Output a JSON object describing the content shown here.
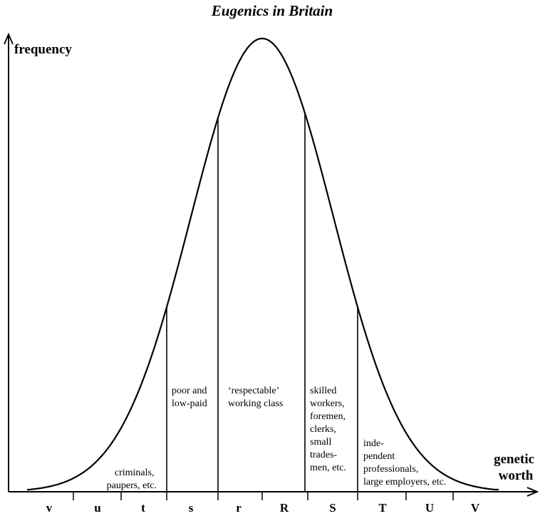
{
  "title": "Eugenics in Britain",
  "y_axis_label": "frequency",
  "x_axis_label": [
    "genetic",
    "worth"
  ],
  "grades": [
    "v",
    "u",
    "t",
    "s",
    "r",
    "R",
    "S",
    "T",
    "U",
    "V"
  ],
  "regions": [
    {
      "id": "criminals",
      "lines": [
        "criminals,",
        "paupers, etc."
      ]
    },
    {
      "id": "poor",
      "lines": [
        "poor and",
        "low-paid"
      ]
    },
    {
      "id": "working",
      "lines": [
        "‘respectable’",
        "working class"
      ]
    },
    {
      "id": "skilled",
      "lines": [
        "skilled",
        "workers,",
        "foremen,",
        "clerks,",
        "small",
        "trades-",
        "men, etc."
      ]
    },
    {
      "id": "professionals",
      "lines": [
        "inde-",
        "pendent",
        "professionals,",
        "large employers, etc."
      ]
    }
  ]
}
